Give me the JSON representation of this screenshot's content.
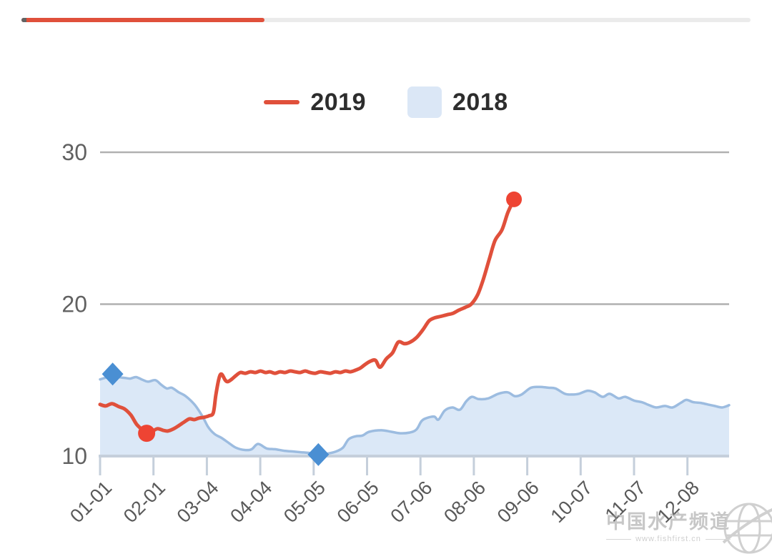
{
  "header": {
    "progress_bar": {
      "fraction": 0.333
    }
  },
  "legend": {
    "items": [
      {
        "label": "2019",
        "swatch": "line",
        "color": "#e0503b"
      },
      {
        "label": "2018",
        "swatch": "area",
        "color": "#dbe7f6"
      }
    ]
  },
  "watermark": {
    "title": "中国水产频道",
    "url": "www.fishfirst.cn"
  },
  "colors": {
    "accent_red": "#e0503b",
    "track_gray": "#ebebeb",
    "cap_dark": "#636363",
    "area_fill": "#dbe8f7",
    "area_line": "#9cbce0",
    "marker_blue": "#4a8fd3",
    "grid": "#b1b1b1",
    "axis": "#c5cfdb",
    "tick_label": "#595959",
    "legend_swatch_blue": "#dbe7f6",
    "watermark_gray": "#9a9a9a"
  },
  "chart_data": {
    "type": "line",
    "title": "",
    "xlabel": "",
    "ylabel": "",
    "ylim": [
      10,
      30
    ],
    "y_ticks": [
      10,
      20,
      30
    ],
    "grid": "horizontal-only",
    "legend_position": "top-center",
    "x_tick_labels": [
      "01-01",
      "02-01",
      "03-04",
      "04-04",
      "05-05",
      "06-05",
      "07-06",
      "08-06",
      "09-06",
      "10-07",
      "11-07",
      "12-08"
    ],
    "x_note": "t = fraction of x-axis width starting at the 01-01 tick",
    "series": [
      {
        "name": "2018",
        "type": "area",
        "line_color": "#9cbce0",
        "fill_color": "#dbe8f7",
        "marker_color": "#4a8fd3",
        "markers": [
          {
            "t": 0.02,
            "v": 15.4,
            "shape": "diamond"
          },
          {
            "t": 0.347,
            "v": 10.1,
            "shape": "diamond"
          }
        ],
        "points": [
          [
            0.0,
            15.05
          ],
          [
            0.011,
            15.2
          ],
          [
            0.02,
            15.4
          ],
          [
            0.03,
            15.2
          ],
          [
            0.039,
            15.15
          ],
          [
            0.048,
            15.1
          ],
          [
            0.057,
            15.2
          ],
          [
            0.066,
            15.05
          ],
          [
            0.076,
            14.9
          ],
          [
            0.088,
            15.0
          ],
          [
            0.097,
            14.7
          ],
          [
            0.106,
            14.45
          ],
          [
            0.114,
            14.5
          ],
          [
            0.125,
            14.2
          ],
          [
            0.136,
            13.95
          ],
          [
            0.15,
            13.4
          ],
          [
            0.163,
            12.6
          ],
          [
            0.172,
            11.9
          ],
          [
            0.182,
            11.45
          ],
          [
            0.193,
            11.2
          ],
          [
            0.205,
            10.85
          ],
          [
            0.216,
            10.55
          ],
          [
            0.23,
            10.4
          ],
          [
            0.241,
            10.45
          ],
          [
            0.251,
            10.8
          ],
          [
            0.265,
            10.5
          ],
          [
            0.278,
            10.45
          ],
          [
            0.293,
            10.35
          ],
          [
            0.307,
            10.3
          ],
          [
            0.32,
            10.25
          ],
          [
            0.334,
            10.2
          ],
          [
            0.347,
            10.1
          ],
          [
            0.36,
            10.15
          ],
          [
            0.375,
            10.3
          ],
          [
            0.386,
            10.55
          ],
          [
            0.395,
            11.1
          ],
          [
            0.406,
            11.3
          ],
          [
            0.417,
            11.35
          ],
          [
            0.428,
            11.6
          ],
          [
            0.447,
            11.7
          ],
          [
            0.463,
            11.6
          ],
          [
            0.477,
            11.5
          ],
          [
            0.492,
            11.55
          ],
          [
            0.503,
            11.75
          ],
          [
            0.511,
            12.3
          ],
          [
            0.519,
            12.5
          ],
          [
            0.531,
            12.6
          ],
          [
            0.538,
            12.4
          ],
          [
            0.548,
            13.0
          ],
          [
            0.56,
            13.2
          ],
          [
            0.572,
            13.05
          ],
          [
            0.582,
            13.6
          ],
          [
            0.591,
            13.9
          ],
          [
            0.602,
            13.75
          ],
          [
            0.617,
            13.8
          ],
          [
            0.633,
            14.1
          ],
          [
            0.648,
            14.2
          ],
          [
            0.659,
            13.95
          ],
          [
            0.67,
            14.05
          ],
          [
            0.685,
            14.5
          ],
          [
            0.699,
            14.55
          ],
          [
            0.713,
            14.5
          ],
          [
            0.724,
            14.45
          ],
          [
            0.739,
            14.1
          ],
          [
            0.75,
            14.05
          ],
          [
            0.761,
            14.1
          ],
          [
            0.775,
            14.3
          ],
          [
            0.786,
            14.2
          ],
          [
            0.799,
            13.9
          ],
          [
            0.81,
            14.1
          ],
          [
            0.824,
            13.8
          ],
          [
            0.835,
            13.9
          ],
          [
            0.849,
            13.65
          ],
          [
            0.861,
            13.55
          ],
          [
            0.873,
            13.35
          ],
          [
            0.884,
            13.2
          ],
          [
            0.898,
            13.3
          ],
          [
            0.91,
            13.2
          ],
          [
            0.923,
            13.5
          ],
          [
            0.932,
            13.7
          ],
          [
            0.943,
            13.55
          ],
          [
            0.955,
            13.5
          ],
          [
            0.966,
            13.4
          ],
          [
            0.977,
            13.3
          ],
          [
            0.989,
            13.2
          ],
          [
            1.0,
            13.35
          ]
        ]
      },
      {
        "name": "2019",
        "type": "line",
        "color": "#e0503b",
        "marker_color": "#ee4433",
        "markers": [
          {
            "t": 0.074,
            "v": 11.5,
            "shape": "circle"
          },
          {
            "t": 0.658,
            "v": 26.9,
            "shape": "circle"
          }
        ],
        "points": [
          [
            0.0,
            13.4
          ],
          [
            0.009,
            13.3
          ],
          [
            0.019,
            13.45
          ],
          [
            0.03,
            13.25
          ],
          [
            0.039,
            13.1
          ],
          [
            0.049,
            12.7
          ],
          [
            0.058,
            12.1
          ],
          [
            0.068,
            11.7
          ],
          [
            0.074,
            11.5
          ],
          [
            0.082,
            11.6
          ],
          [
            0.091,
            11.8
          ],
          [
            0.1,
            11.7
          ],
          [
            0.108,
            11.65
          ],
          [
            0.117,
            11.8
          ],
          [
            0.125,
            12.0
          ],
          [
            0.134,
            12.25
          ],
          [
            0.142,
            12.45
          ],
          [
            0.15,
            12.4
          ],
          [
            0.157,
            12.5
          ],
          [
            0.165,
            12.55
          ],
          [
            0.173,
            12.65
          ],
          [
            0.18,
            12.85
          ],
          [
            0.184,
            14.0
          ],
          [
            0.189,
            15.1
          ],
          [
            0.193,
            15.4
          ],
          [
            0.199,
            15.0
          ],
          [
            0.203,
            14.9
          ],
          [
            0.209,
            15.05
          ],
          [
            0.216,
            15.3
          ],
          [
            0.223,
            15.5
          ],
          [
            0.231,
            15.45
          ],
          [
            0.239,
            15.55
          ],
          [
            0.247,
            15.5
          ],
          [
            0.255,
            15.6
          ],
          [
            0.263,
            15.5
          ],
          [
            0.27,
            15.55
          ],
          [
            0.278,
            15.45
          ],
          [
            0.286,
            15.55
          ],
          [
            0.294,
            15.5
          ],
          [
            0.302,
            15.6
          ],
          [
            0.31,
            15.55
          ],
          [
            0.318,
            15.5
          ],
          [
            0.326,
            15.6
          ],
          [
            0.334,
            15.5
          ],
          [
            0.342,
            15.45
          ],
          [
            0.35,
            15.55
          ],
          [
            0.358,
            15.5
          ],
          [
            0.366,
            15.45
          ],
          [
            0.374,
            15.55
          ],
          [
            0.382,
            15.5
          ],
          [
            0.39,
            15.6
          ],
          [
            0.398,
            15.55
          ],
          [
            0.406,
            15.65
          ],
          [
            0.414,
            15.8
          ],
          [
            0.422,
            16.05
          ],
          [
            0.43,
            16.25
          ],
          [
            0.438,
            16.3
          ],
          [
            0.445,
            15.85
          ],
          [
            0.455,
            16.4
          ],
          [
            0.465,
            16.8
          ],
          [
            0.474,
            17.5
          ],
          [
            0.484,
            17.4
          ],
          [
            0.493,
            17.5
          ],
          [
            0.503,
            17.8
          ],
          [
            0.513,
            18.3
          ],
          [
            0.523,
            18.9
          ],
          [
            0.532,
            19.1
          ],
          [
            0.542,
            19.2
          ],
          [
            0.551,
            19.3
          ],
          [
            0.561,
            19.4
          ],
          [
            0.57,
            19.6
          ],
          [
            0.581,
            19.8
          ],
          [
            0.59,
            20.0
          ],
          [
            0.6,
            20.6
          ],
          [
            0.609,
            21.6
          ],
          [
            0.619,
            23.0
          ],
          [
            0.628,
            24.2
          ],
          [
            0.639,
            24.9
          ],
          [
            0.648,
            26.0
          ],
          [
            0.658,
            26.9
          ]
        ]
      }
    ]
  }
}
